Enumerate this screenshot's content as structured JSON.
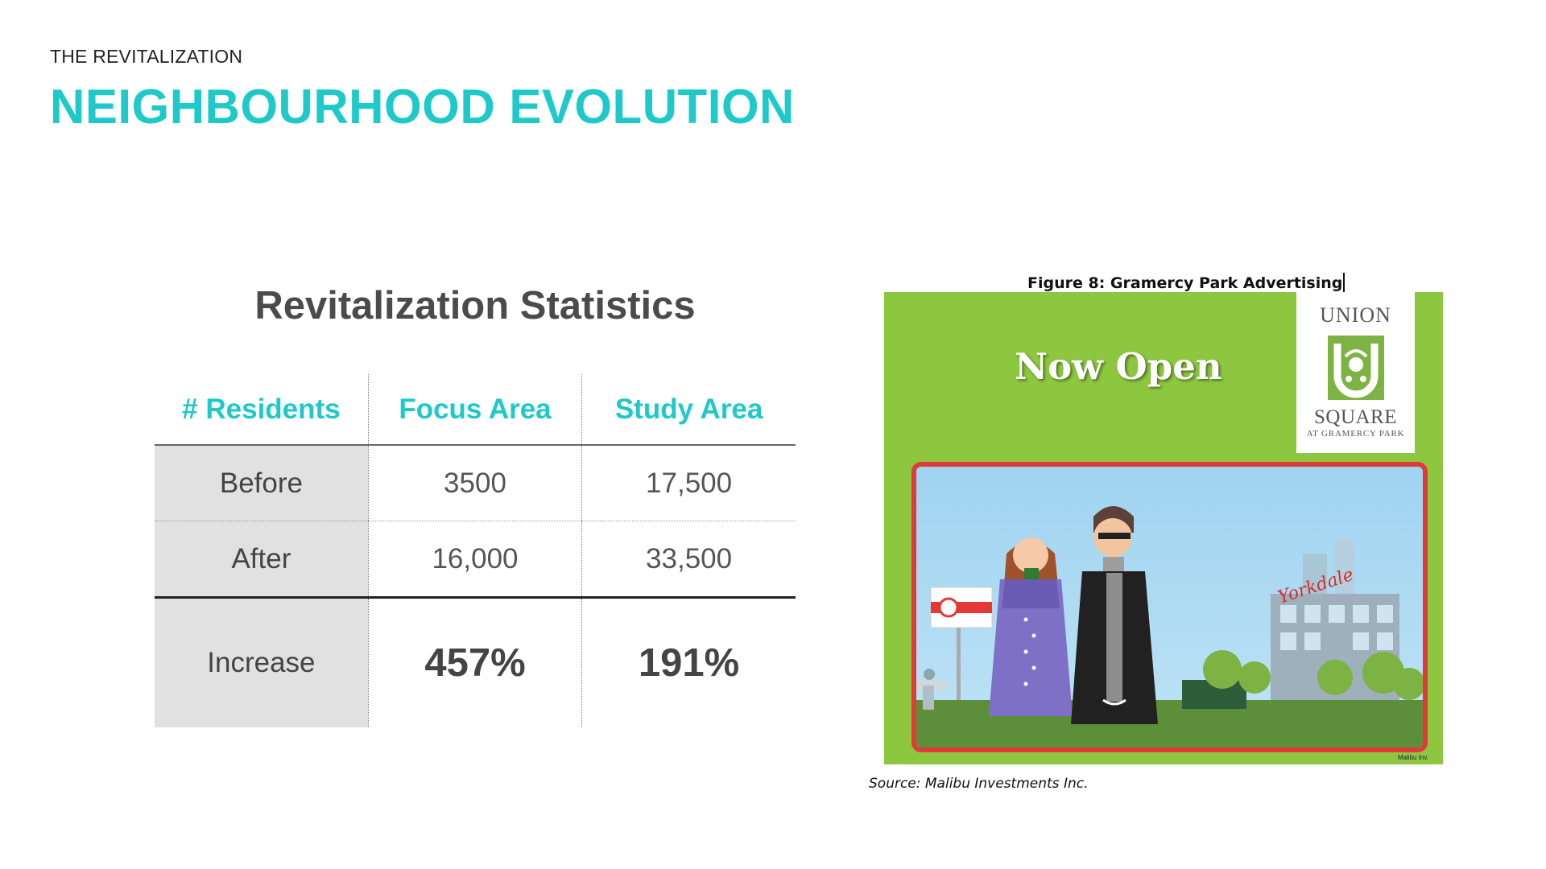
{
  "slide": {
    "eyebrow": "THE REVITALIZATION",
    "title": "NEIGHBOURHOOD EVOLUTION",
    "accent_color": "#1ec9c9"
  },
  "stats": {
    "heading": "Revitalization Statistics",
    "columns": [
      "# Residents",
      "Focus Area",
      "Study Area"
    ],
    "rows": [
      {
        "label": "Before",
        "focus": "3500",
        "study": "17,500"
      },
      {
        "label": "After",
        "focus": "16,000",
        "study": "33,500"
      },
      {
        "label": "Increase",
        "focus": "457%",
        "study": "191%"
      }
    ]
  },
  "figure": {
    "caption": "Figure 8: Gramercy Park Advertising",
    "ad_headline": "Now Open",
    "logo_line1": "UNION",
    "logo_line2": "SQUARE",
    "logo_line3": "AT GRAMERCY PARK",
    "sign_text": "Yorkdale",
    "ad_footer": "Malibu Inv.",
    "source": "Source: Malibu Investments Inc.",
    "colors": {
      "ad_green": "#8dc63f",
      "frame_red": "#e13a3a",
      "sky": "#9fd3f0"
    }
  }
}
